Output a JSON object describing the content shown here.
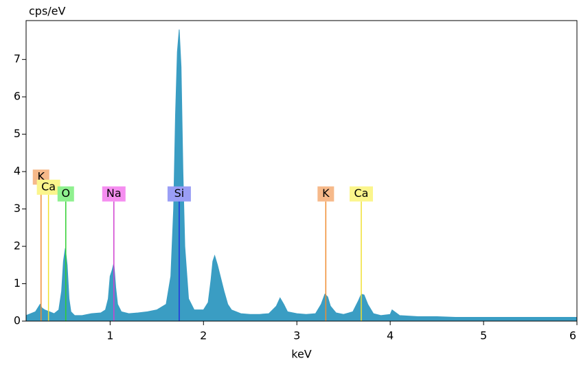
{
  "chart_data": {
    "type": "area",
    "y_label": "cps/eV",
    "x_label": "keV",
    "xlim": [
      0.1,
      6
    ],
    "ylim": [
      0,
      8.04
    ],
    "xticks": [
      1,
      2,
      3,
      4,
      5,
      6
    ],
    "yticks": [
      0,
      1,
      2,
      3,
      4,
      5,
      6,
      7
    ],
    "color": "#3a9dc3",
    "x": [
      0.1,
      0.15,
      0.2,
      0.25,
      0.27,
      0.3,
      0.35,
      0.4,
      0.45,
      0.48,
      0.5,
      0.52,
      0.54,
      0.56,
      0.58,
      0.62,
      0.7,
      0.8,
      0.9,
      0.95,
      0.98,
      1.0,
      1.02,
      1.04,
      1.06,
      1.08,
      1.12,
      1.2,
      1.3,
      1.4,
      1.5,
      1.6,
      1.65,
      1.68,
      1.7,
      1.72,
      1.74,
      1.76,
      1.78,
      1.8,
      1.84,
      1.9,
      2.0,
      2.05,
      2.08,
      2.1,
      2.12,
      2.15,
      2.18,
      2.22,
      2.26,
      2.3,
      2.4,
      2.5,
      2.6,
      2.7,
      2.78,
      2.82,
      2.86,
      2.9,
      3.0,
      3.1,
      3.2,
      3.26,
      3.3,
      3.33,
      3.36,
      3.42,
      3.5,
      3.6,
      3.66,
      3.69,
      3.72,
      3.76,
      3.82,
      3.9,
      4.0,
      4.02,
      4.1,
      4.3,
      4.5,
      4.7,
      4.9,
      5.1,
      5.3,
      5.5,
      5.7,
      5.9,
      6.0
    ],
    "values": [
      0.15,
      0.2,
      0.25,
      0.45,
      0.35,
      0.3,
      0.25,
      0.2,
      0.3,
      0.8,
      1.6,
      1.95,
      1.5,
      0.6,
      0.25,
      0.15,
      0.15,
      0.2,
      0.22,
      0.3,
      0.6,
      1.2,
      1.35,
      1.55,
      0.9,
      0.45,
      0.25,
      0.2,
      0.22,
      0.25,
      0.3,
      0.45,
      1.2,
      3.0,
      5.5,
      7.2,
      7.8,
      6.8,
      4.0,
      2.0,
      0.6,
      0.3,
      0.3,
      0.5,
      1.1,
      1.6,
      1.75,
      1.5,
      1.2,
      0.8,
      0.45,
      0.3,
      0.2,
      0.18,
      0.18,
      0.2,
      0.4,
      0.62,
      0.45,
      0.25,
      0.2,
      0.18,
      0.2,
      0.45,
      0.72,
      0.65,
      0.4,
      0.22,
      0.18,
      0.25,
      0.55,
      0.72,
      0.7,
      0.45,
      0.2,
      0.15,
      0.18,
      0.3,
      0.15,
      0.12,
      0.12,
      0.1,
      0.1,
      0.1,
      0.1,
      0.1,
      0.1,
      0.1,
      0.1
    ],
    "markers": [
      {
        "label": "K",
        "energy": 0.26,
        "height": 3.65,
        "color": "#f08c30",
        "label_color": "#f6b98a"
      },
      {
        "label": "Ca",
        "energy": 0.34,
        "height": 3.38,
        "color": "#f0e030",
        "label_color": "#fbf58c"
      },
      {
        "label": "O",
        "energy": 0.525,
        "height": 3.2,
        "color": "#30d030",
        "label_color": "#8ff08f"
      },
      {
        "label": "Na",
        "energy": 1.04,
        "height": 3.2,
        "color": "#d040d0",
        "label_color": "#f58ef0"
      },
      {
        "label": "Si",
        "energy": 1.74,
        "height": 3.2,
        "color": "#2030e0",
        "label_color": "#9a9ef5"
      },
      {
        "label": "K",
        "energy": 3.31,
        "height": 3.2,
        "color": "#f08c30",
        "label_color": "#f6b98a"
      },
      {
        "label": "Ca",
        "energy": 3.69,
        "height": 3.2,
        "color": "#f0e030",
        "label_color": "#fbf58c"
      }
    ]
  }
}
